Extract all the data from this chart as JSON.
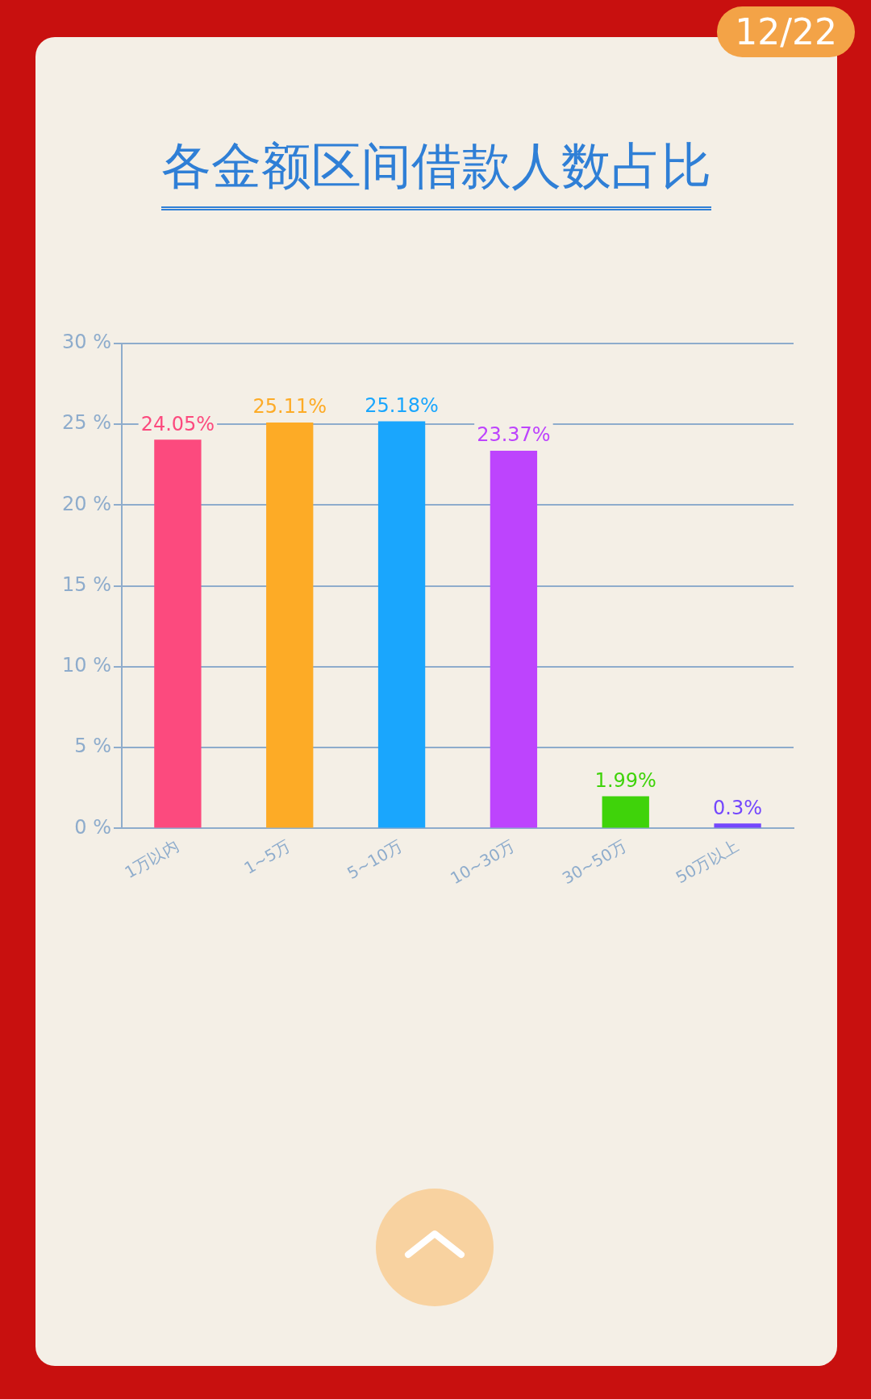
{
  "chart_data": {
    "type": "bar",
    "title": "各金额区间借款人数占比",
    "categories": [
      "1万以内",
      "1~5万",
      "5~10万",
      "10~30万",
      "30~50万",
      "50万以上"
    ],
    "values": [
      24.05,
      25.11,
      25.18,
      23.37,
      1.99,
      0.3
    ],
    "colors": [
      "#fc4a7e",
      "#fdab26",
      "#1aa6fd",
      "#bd44fd",
      "#3fd30a",
      "#7447fd"
    ],
    "value_labels": [
      "24.05%",
      "25.11%",
      "25.18%",
      "23.37%",
      "1.99%",
      "0.3%"
    ],
    "ylim": [
      0,
      30
    ],
    "yticks": [
      {
        "value": 0,
        "label": "0 %"
      },
      {
        "value": 5,
        "label": "5 %"
      },
      {
        "value": 10,
        "label": "10 %"
      },
      {
        "value": 15,
        "label": "15 %"
      },
      {
        "value": 20,
        "label": "20 %"
      },
      {
        "value": 25,
        "label": "25 %"
      },
      {
        "value": 30,
        "label": "30 %"
      }
    ],
    "grid": "y",
    "legend": false,
    "annotations": [
      "12/22"
    ]
  }
}
